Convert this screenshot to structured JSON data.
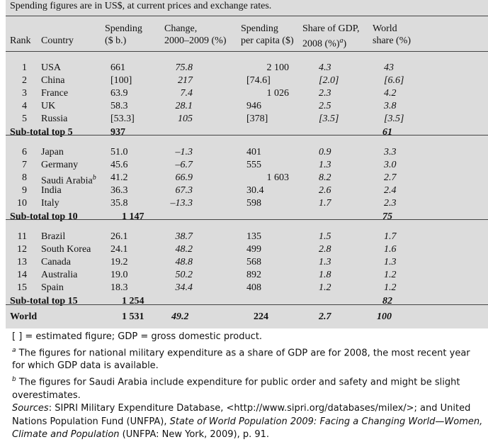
{
  "caption": "Spending figures are in US$, at current prices and exchange rates.",
  "headers": {
    "rank": "Rank",
    "country": "Country",
    "spending_1": "Spending",
    "spending_2": "($ b.)",
    "change_1": "Change,",
    "change_2": "2000–2009 (%)",
    "percap_1": "Spending",
    "percap_2": "per capita ($)",
    "gdp_1": "Share of GDP,",
    "gdp_2": "2008 (%)",
    "gdp_sup": "a",
    "world_1": "World",
    "world_2": "share (%)"
  },
  "rows": [
    {
      "type": "row",
      "rank": "1",
      "country": "USA",
      "spending": "661",
      "change": "75.8",
      "percap": "2 100",
      "gdp": "4.3",
      "world": "43"
    },
    {
      "type": "row",
      "rank": "2",
      "country": "China",
      "spending": "[100]",
      "change": "217",
      "percap": "[74.6]",
      "gdp": "[2.0]",
      "world": "[6.6]"
    },
    {
      "type": "row",
      "rank": "3",
      "country": "France",
      "spending": "63.9",
      "change": "7.4",
      "percap": "1 026",
      "gdp": "2.3",
      "world": "4.2"
    },
    {
      "type": "row",
      "rank": "4",
      "country": "UK",
      "spending": "58.3",
      "change": "28.1",
      "percap": "946",
      "gdp": "2.5",
      "world": "3.8"
    },
    {
      "type": "row",
      "rank": "5",
      "country": "Russia",
      "spending": "[53.3]",
      "change": "105",
      "percap": "[378]",
      "gdp": "[3.5]",
      "world": "[3.5]"
    },
    {
      "type": "sub",
      "label": "Sub-total top 5",
      "spending": "937",
      "world": "61"
    },
    {
      "type": "row",
      "rank": "6",
      "country": "Japan",
      "spending": "51.0",
      "change": "–1.3",
      "percap": "401",
      "gdp": "0.9",
      "world": "3.3"
    },
    {
      "type": "row",
      "rank": "7",
      "country": "Germany",
      "spending": "45.6",
      "change": "–6.7",
      "percap": "555",
      "gdp": "1.3",
      "world": "3.0"
    },
    {
      "type": "row",
      "rank": "8",
      "country": "Saudi Arabia",
      "sup": "b",
      "spending": "41.2",
      "change": "66.9",
      "percap": "1 603",
      "gdp": "8.2",
      "world": "2.7"
    },
    {
      "type": "row",
      "rank": "9",
      "country": "India",
      "spending": "36.3",
      "change": "67.3",
      "percap": "30.4",
      "gdp": "2.6",
      "world": "2.4"
    },
    {
      "type": "row",
      "rank": "10",
      "country": "Italy",
      "spending": "35.8",
      "change": "–13.3",
      "percap": "598",
      "gdp": "1.7",
      "world": "2.3"
    },
    {
      "type": "sub",
      "label": "Sub-total top 10",
      "spending": "1 147",
      "world": "75"
    },
    {
      "type": "row",
      "rank": "11",
      "country": "Brazil",
      "spending": "26.1",
      "change": "38.7",
      "percap": "135",
      "gdp": "1.5",
      "world": "1.7"
    },
    {
      "type": "row",
      "rank": "12",
      "country": "South Korea",
      "spending": "24.1",
      "change": "48.2",
      "percap": "499",
      "gdp": "2.8",
      "world": "1.6"
    },
    {
      "type": "row",
      "rank": "13",
      "country": "Canada",
      "spending": "19.2",
      "change": "48.8",
      "percap": "568",
      "gdp": "1.3",
      "world": "1.3"
    },
    {
      "type": "row",
      "rank": "14",
      "country": "Australia",
      "spending": "19.0",
      "change": "50.2",
      "percap": "892",
      "gdp": "1.8",
      "world": "1.2"
    },
    {
      "type": "row",
      "rank": "15",
      "country": "Spain",
      "spending": "18.3",
      "change": "34.4",
      "percap": "408",
      "gdp": "1.2",
      "world": "1.2"
    },
    {
      "type": "sub",
      "label": "Sub-total top 15",
      "spending": "1 254",
      "world": "82"
    },
    {
      "type": "world",
      "label": "World",
      "spending": "1 531",
      "change": "49.2",
      "percap": "224",
      "gdp": "2.7",
      "world": "100"
    }
  ],
  "notes": {
    "n1": "[ ] = estimated figure; GDP = gross domestic product.",
    "n2_sup": "a",
    "n2": " The figures for national military expenditure as a share of GDP are for 2008, the most recent year for which GDP data is available.",
    "n3_sup": "b",
    "n3": " The figures for Saudi Arabia include expenditure for public order and safety and might be slight overestimates.",
    "sources_label": "Sources",
    "sources_a": ": SIPRI Military Expenditure Database, <http://www.sipri.org/databases/milex/>; and United Nations Population Fund (UNFPA), ",
    "sources_title": "State of World Population 2009: Facing a Changing World—Women, Climate and Population",
    "sources_b": " (UNFPA: New York, 2009), p. 91."
  }
}
